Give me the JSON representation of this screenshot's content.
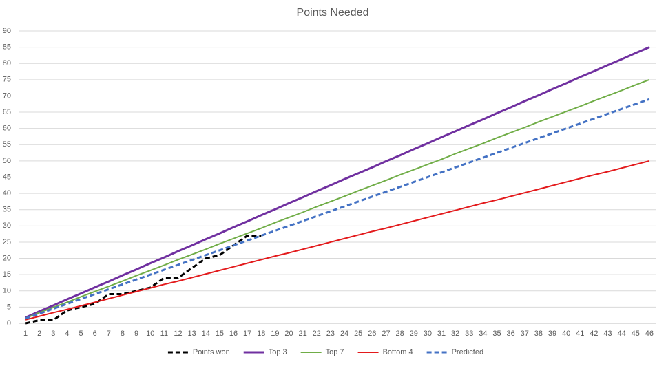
{
  "chart_data": {
    "type": "line",
    "title": "Points Needed",
    "categories": [
      "1",
      "2",
      "3",
      "4",
      "5",
      "6",
      "7",
      "8",
      "9",
      "10",
      "11",
      "12",
      "13",
      "14",
      "15",
      "16",
      "17",
      "18",
      "19",
      "20",
      "21",
      "22",
      "23",
      "24",
      "25",
      "26",
      "27",
      "28",
      "29",
      "30",
      "31",
      "32",
      "33",
      "34",
      "35",
      "36",
      "37",
      "38",
      "39",
      "40",
      "41",
      "42",
      "43",
      "44",
      "45",
      "46"
    ],
    "ylim": [
      0,
      90
    ],
    "yticks": [
      0,
      5,
      10,
      15,
      20,
      25,
      30,
      35,
      40,
      45,
      50,
      55,
      60,
      65,
      70,
      75,
      80,
      85,
      90
    ],
    "grid": true,
    "legend": "bottom",
    "series": [
      {
        "name": "Points won",
        "color": "#000000",
        "line_style": "dashed",
        "values": [
          0,
          1,
          1,
          4,
          5,
          6,
          9,
          9,
          10,
          11,
          14,
          14,
          17,
          20,
          21,
          24,
          27,
          27,
          null,
          null,
          null,
          null,
          null,
          null,
          null,
          null,
          null,
          null,
          null,
          null,
          null,
          null,
          null,
          null,
          null,
          null,
          null,
          null,
          null,
          null,
          null,
          null,
          null,
          null,
          null,
          null
        ]
      },
      {
        "name": "Top 3",
        "color": "#7030a0",
        "line_style": "solid",
        "values": [
          1.8,
          3.7,
          5.5,
          7.4,
          9.2,
          11.1,
          12.9,
          14.8,
          16.6,
          18.5,
          20.3,
          22.2,
          24.0,
          25.9,
          27.7,
          29.6,
          31.4,
          33.3,
          35.1,
          37.0,
          38.8,
          40.7,
          42.5,
          44.4,
          46.2,
          48.0,
          49.9,
          51.7,
          53.6,
          55.4,
          57.3,
          59.1,
          61.0,
          62.8,
          64.7,
          66.5,
          68.4,
          70.2,
          72.1,
          73.9,
          75.8,
          77.6,
          79.5,
          81.3,
          83.2,
          85.0
        ]
      },
      {
        "name": "Top 7",
        "color": "#70ad47",
        "line_style": "solid",
        "values": [
          1.6,
          3.3,
          4.9,
          6.5,
          8.2,
          9.8,
          11.4,
          13.0,
          14.7,
          16.3,
          17.9,
          19.6,
          21.2,
          22.8,
          24.5,
          26.1,
          27.7,
          29.3,
          31.0,
          32.6,
          34.2,
          35.9,
          37.5,
          39.1,
          40.8,
          42.4,
          44.0,
          45.7,
          47.3,
          48.9,
          50.5,
          52.2,
          53.8,
          55.4,
          57.1,
          58.7,
          60.3,
          62.0,
          63.6,
          65.2,
          66.8,
          68.5,
          70.1,
          71.7,
          73.4,
          75.0
        ]
      },
      {
        "name": "Bottom 4",
        "color": "#e31a1c",
        "line_style": "solid",
        "values": [
          1.1,
          2.2,
          3.3,
          4.3,
          5.4,
          6.5,
          7.6,
          8.7,
          9.8,
          10.9,
          12.0,
          13.0,
          14.1,
          15.2,
          16.3,
          17.4,
          18.5,
          19.6,
          20.7,
          21.7,
          22.8,
          23.9,
          25.0,
          26.1,
          27.2,
          28.3,
          29.3,
          30.4,
          31.5,
          32.6,
          33.7,
          34.8,
          35.9,
          37.0,
          38.0,
          39.1,
          40.2,
          41.3,
          42.4,
          43.5,
          44.6,
          45.7,
          46.7,
          47.8,
          48.9,
          50.0
        ]
      },
      {
        "name": "Predicted",
        "color": "#4472c4",
        "line_style": "dashed",
        "values": [
          1.5,
          3,
          4.5,
          6,
          7.5,
          9,
          10.5,
          12,
          13.5,
          15,
          16.5,
          18,
          19.5,
          21,
          22.5,
          24,
          25.5,
          27,
          28.5,
          30,
          31.5,
          33,
          34.5,
          36,
          37.5,
          39,
          40.5,
          42,
          43.5,
          45,
          46.5,
          48,
          49.5,
          51,
          52.5,
          54,
          55.5,
          57,
          58.5,
          60,
          61.5,
          63,
          64.5,
          66,
          67.5,
          69
        ]
      }
    ]
  }
}
